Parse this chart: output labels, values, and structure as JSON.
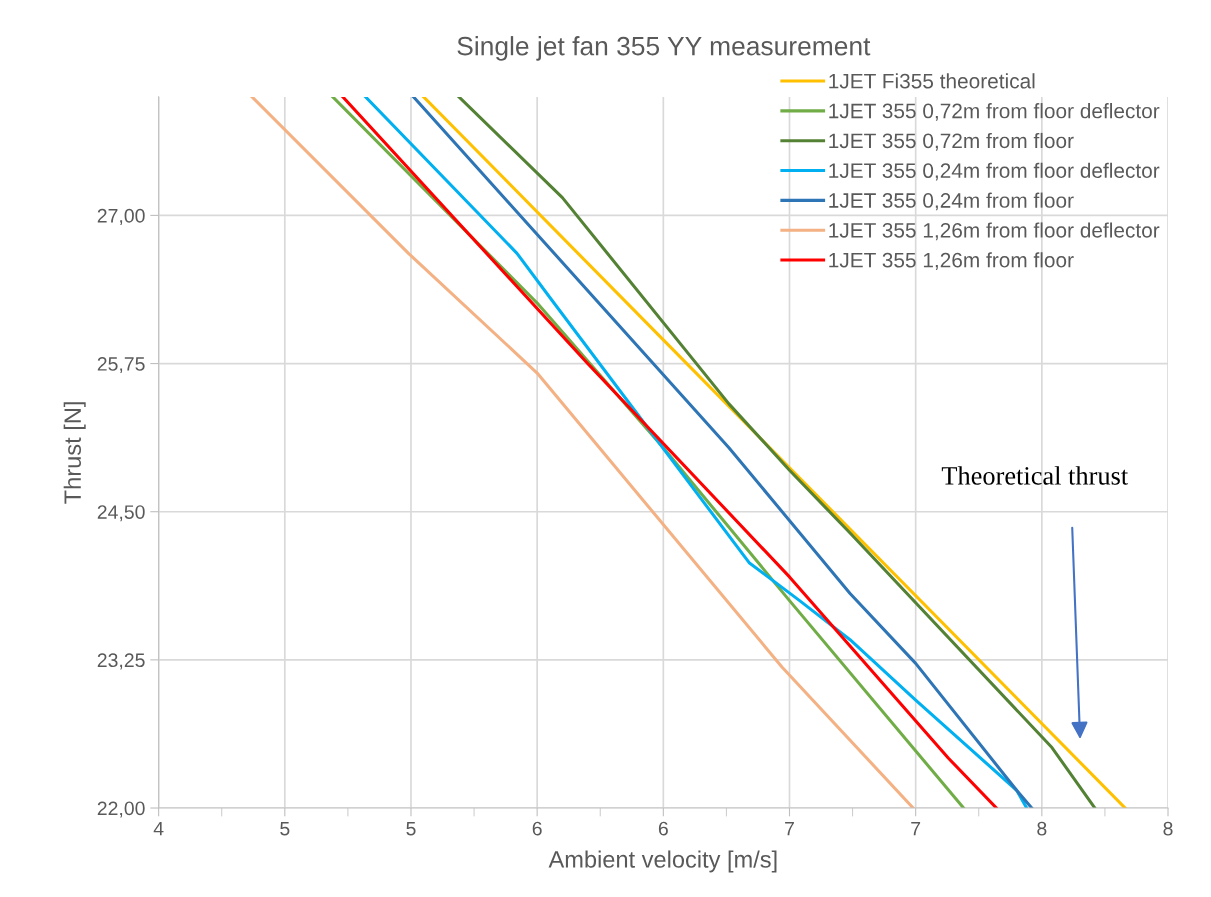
{
  "chart_data": {
    "type": "line",
    "title": "Single jet fan 355 YY measurement",
    "xlabel": "Ambient velocity [m/s]",
    "ylabel": "Thrust [N]",
    "xlim": [
      4,
      8
    ],
    "ylim": [
      22,
      28
    ],
    "xticks": [
      4,
      {
        "value": 4.25,
        "label": null
      },
      {
        "value": 4.5,
        "label": "5"
      },
      {
        "value": 4.75,
        "label": null
      },
      5,
      {
        "value": 5.25,
        "label": null
      },
      {
        "value": 5.5,
        "label": "6"
      },
      {
        "value": 5.75,
        "label": null
      },
      6,
      {
        "value": 6.25,
        "label": null
      },
      {
        "value": 6.5,
        "label": "7"
      },
      {
        "value": 6.75,
        "label": null
      },
      7,
      {
        "value": 7.25,
        "label": null
      },
      {
        "value": 7.5,
        "label": "8"
      },
      {
        "value": 7.75,
        "label": null
      },
      8
    ],
    "yticks": [
      {
        "value": 22,
        "label": "22,00"
      },
      {
        "value": 23.25,
        "label": "23,25"
      },
      {
        "value": 24.5,
        "label": "24,50"
      },
      {
        "value": 25.75,
        "label": "25,75"
      },
      {
        "value": 27,
        "label": "27,00"
      }
    ],
    "grid": true,
    "legend": "top right",
    "marker": "none",
    "line_style": "solid",
    "series": [
      {
        "name": "1JET Fi355 theoretical",
        "color": "#ffc000",
        "x": [
          5.05,
          6.0,
          7.83
        ],
        "values": [
          28,
          25.95,
          22
        ]
      },
      {
        "name": "1JET 355 0,72m from floor deflector",
        "color": "#70ad47",
        "x": [
          4.69,
          5.5,
          6.0,
          6.5,
          7.19
        ],
        "values": [
          28,
          26.26,
          25.04,
          23.75,
          22
        ]
      },
      {
        "name": "1JET 355 0,72m from floor",
        "color": "#548235",
        "x": [
          5.19,
          5.6,
          6.26,
          6.5,
          6.74,
          7.54,
          7.71
        ],
        "values": [
          28,
          27.15,
          25.41,
          24.85,
          24.32,
          22.51,
          22
        ]
      },
      {
        "name": "1JET 355 0,24m from floor deflector",
        "color": "#00b0f0",
        "x": [
          4.82,
          5.42,
          5.56,
          6.34,
          6.54,
          6.74,
          7.0,
          7.4,
          7.44
        ],
        "values": [
          28,
          26.68,
          26.28,
          24.07,
          23.75,
          23.42,
          22.91,
          22.15,
          22
        ]
      },
      {
        "name": "1JET 355 0,24m from floor",
        "color": "#2e75b6",
        "x": [
          5.01,
          6.26,
          6.74,
          7.0,
          7.4,
          7.46
        ],
        "values": [
          28,
          25.04,
          23.81,
          23.22,
          22.15,
          22
        ]
      },
      {
        "name": "1JET 355 1,26m from floor deflector",
        "color": "#f4b183",
        "x": [
          4.37,
          4.99,
          5.5,
          6.47,
          6.99
        ],
        "values": [
          28,
          26.68,
          25.67,
          23.19,
          22
        ]
      },
      {
        "name": "1JET 355 1,26m from floor",
        "color": "#ff0000",
        "x": [
          4.73,
          5.7,
          6.5,
          7.13,
          7.32
        ],
        "values": [
          28,
          25.75,
          23.95,
          22.42,
          22
        ]
      }
    ],
    "annotations": [
      "Theoretical thrust"
    ]
  }
}
